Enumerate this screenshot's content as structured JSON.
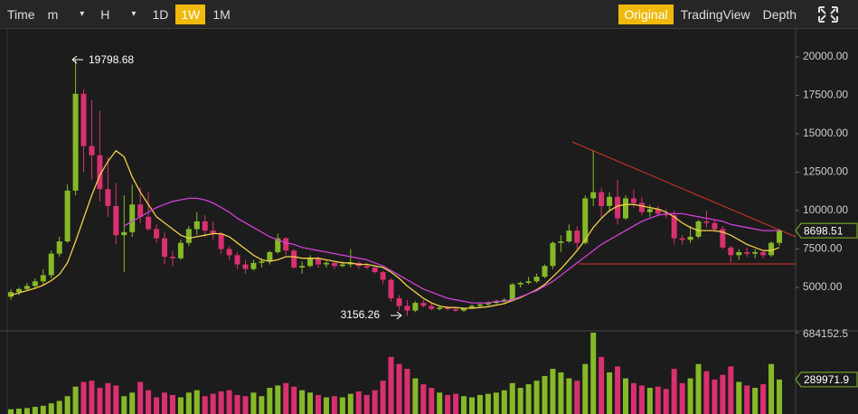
{
  "toolbar": {
    "left": [
      "Time",
      "m",
      "H",
      "1D",
      "1W",
      "1M"
    ],
    "active_interval": "1W",
    "dropdowns": [
      "m",
      "H"
    ],
    "right": [
      "Original",
      "TradingView",
      "Depth"
    ],
    "active_view": "Original"
  },
  "chart_data": [
    {
      "type": "candlestick",
      "up_color": "#86b928",
      "down_color": "#d9306f",
      "ylim": [
        2240,
        21760
      ],
      "yticks": [
        {
          "value": 20000,
          "label": "20000.00"
        },
        {
          "value": 17500,
          "label": "17500.00"
        },
        {
          "value": 15000,
          "label": "15000.00"
        },
        {
          "value": 12500,
          "label": "12500.00"
        },
        {
          "value": 10000,
          "label": "10000.00"
        },
        {
          "value": 7500,
          "label": "7500.00"
        },
        {
          "value": 5000,
          "label": "5000.00"
        }
      ],
      "ohlc": [
        [
          4400,
          4900,
          4200,
          4700
        ],
        [
          4700,
          5000,
          4500,
          4900
        ],
        [
          4900,
          5300,
          4800,
          5100
        ],
        [
          5100,
          5600,
          4900,
          5400
        ],
        [
          5400,
          6200,
          5200,
          5800
        ],
        [
          5800,
          7400,
          5600,
          7200
        ],
        [
          7200,
          8300,
          7000,
          8000
        ],
        [
          8000,
          11700,
          7900,
          11300
        ],
        [
          11300,
          19798.68,
          11000,
          17600
        ],
        [
          17600,
          17900,
          12500,
          14200
        ],
        [
          14200,
          17200,
          12000,
          13600
        ],
        [
          13600,
          16500,
          10600,
          11400
        ],
        [
          11400,
          13500,
          9600,
          10300
        ],
        [
          10300,
          11800,
          7800,
          8400
        ],
        [
          8400,
          11000,
          6000,
          8600
        ],
        [
          8600,
          11700,
          8300,
          10400
        ],
        [
          10400,
          11500,
          9200,
          9600
        ],
        [
          9600,
          11200,
          8700,
          8800
        ],
        [
          8800,
          9100,
          7900,
          8200
        ],
        [
          8200,
          8600,
          6500,
          7000
        ],
        [
          7000,
          7400,
          6400,
          6900
        ],
        [
          6900,
          8100,
          6800,
          7900
        ],
        [
          7900,
          9000,
          7700,
          8800
        ],
        [
          8800,
          9900,
          8400,
          9300
        ],
        [
          9300,
          9700,
          8300,
          8700
        ],
        [
          8700,
          9300,
          8100,
          8500
        ],
        [
          8500,
          8600,
          7200,
          7500
        ],
        [
          7500,
          7700,
          6800,
          7100
        ],
        [
          7100,
          7300,
          6200,
          6500
        ],
        [
          6500,
          6800,
          5900,
          6200
        ],
        [
          6200,
          6800,
          6100,
          6600
        ],
        [
          6600,
          6900,
          6300,
          6700
        ],
        [
          6700,
          7400,
          6500,
          7300
        ],
        [
          7300,
          8500,
          7200,
          8200
        ],
        [
          8200,
          8300,
          7100,
          7400
        ],
        [
          7400,
          7500,
          6200,
          6300
        ],
        [
          6300,
          6700,
          5900,
          6400
        ],
        [
          6400,
          7100,
          6300,
          6900
        ],
        [
          6900,
          7000,
          6300,
          6500
        ],
        [
          6500,
          6800,
          6300,
          6600
        ],
        [
          6600,
          6700,
          6200,
          6400
        ],
        [
          6400,
          6700,
          6300,
          6500
        ],
        [
          6500,
          7500,
          6300,
          6600
        ],
        [
          6600,
          6700,
          6200,
          6400
        ],
        [
          6400,
          6600,
          6200,
          6300
        ],
        [
          6300,
          6400,
          5900,
          6000
        ],
        [
          6000,
          6100,
          5200,
          5500
        ],
        [
          5500,
          5600,
          4100,
          4300
        ],
        [
          4300,
          4500,
          3500,
          3800
        ],
        [
          3800,
          4200,
          3156.26,
          3500
        ],
        [
          3500,
          4100,
          3400,
          4000
        ],
        [
          4000,
          4200,
          3700,
          3800
        ],
        [
          3800,
          4000,
          3500,
          3600
        ],
        [
          3600,
          3800,
          3500,
          3700
        ],
        [
          3700,
          3800,
          3500,
          3600
        ],
        [
          3600,
          3700,
          3400,
          3500
        ],
        [
          3500,
          3700,
          3400,
          3650
        ],
        [
          3650,
          3900,
          3600,
          3800
        ],
        [
          3800,
          4000,
          3700,
          3900
        ],
        [
          3900,
          4100,
          3800,
          4000
        ],
        [
          4000,
          4200,
          3900,
          4100
        ],
        [
          4100,
          4300,
          4000,
          4200
        ],
        [
          4200,
          5300,
          4100,
          5200
        ],
        [
          5200,
          5400,
          5000,
          5300
        ],
        [
          5300,
          5700,
          5200,
          5400
        ],
        [
          5400,
          5900,
          5300,
          5700
        ],
        [
          5700,
          6500,
          5600,
          6400
        ],
        [
          6400,
          8000,
          6200,
          7900
        ],
        [
          7900,
          8400,
          7300,
          8000
        ],
        [
          8000,
          9100,
          7900,
          8700
        ],
        [
          8700,
          9000,
          7500,
          7900
        ],
        [
          7900,
          11000,
          7800,
          10800
        ],
        [
          10800,
          13880,
          10300,
          11200
        ],
        [
          11200,
          11500,
          9600,
          10300
        ],
        [
          10300,
          11200,
          9900,
          10900
        ],
        [
          10900,
          12000,
          9100,
          9500
        ],
        [
          9500,
          11000,
          9400,
          10800
        ],
        [
          10800,
          11400,
          10200,
          10500
        ],
        [
          10500,
          10900,
          9700,
          9900
        ],
        [
          9900,
          10400,
          9600,
          10100
        ],
        [
          10100,
          10300,
          9700,
          9800
        ],
        [
          9800,
          10100,
          9500,
          9700
        ],
        [
          9700,
          10000,
          7800,
          8200
        ],
        [
          8200,
          8400,
          7800,
          8100
        ],
        [
          8100,
          9000,
          7900,
          8300
        ],
        [
          8300,
          9400,
          8200,
          9300
        ],
        [
          9300,
          10000,
          8900,
          9200
        ],
        [
          9200,
          9400,
          8600,
          8800
        ],
        [
          8800,
          9000,
          7500,
          7600
        ],
        [
          7600,
          7700,
          6600,
          7100
        ],
        [
          7100,
          7500,
          6800,
          7300
        ],
        [
          7300,
          7600,
          7000,
          7200
        ],
        [
          7200,
          7500,
          6900,
          7300
        ],
        [
          7300,
          7400,
          6900,
          7100
        ],
        [
          7100,
          8000,
          7000,
          7900
        ],
        [
          7900,
          8800,
          7700,
          8698.51
        ]
      ],
      "series": [
        {
          "color": "#f0d048",
          "values": [
            4500,
            4650,
            4800,
            4950,
            5150,
            5450,
            5850,
            6600,
            8000,
            9500,
            11000,
            12300,
            13200,
            13900,
            13500,
            12200,
            11200,
            10400,
            9600,
            9200,
            8800,
            8400,
            8200,
            8300,
            8400,
            8500,
            8500,
            8300,
            7900,
            7500,
            7100,
            6800,
            6700,
            6800,
            7000,
            7000,
            6900,
            6900,
            6900,
            6800,
            6700,
            6600,
            6600,
            6500,
            6500,
            6400,
            6300,
            6000,
            5600,
            5100,
            4700,
            4300,
            4000,
            3800,
            3700,
            3700,
            3650,
            3650,
            3700,
            3750,
            3850,
            3950,
            4150,
            4350,
            4600,
            4850,
            5200,
            5700,
            6200,
            6800,
            7400,
            8100,
            8900,
            9500,
            10000,
            10300,
            10400,
            10400,
            10300,
            10200,
            10100,
            9900,
            9600,
            9200,
            8900,
            8700,
            8700,
            8700,
            8600,
            8400,
            8100,
            7800,
            7600,
            7400,
            7400,
            7600
          ]
        },
        {
          "color": "#d23fd8",
          "values": [
            null,
            null,
            null,
            null,
            null,
            null,
            null,
            null,
            null,
            null,
            null,
            null,
            null,
            null,
            9000,
            9300,
            9600,
            9900,
            10200,
            10400,
            10600,
            10700,
            10800,
            10800,
            10700,
            10500,
            10200,
            9900,
            9500,
            9200,
            8900,
            8600,
            8300,
            8100,
            7900,
            7800,
            7600,
            7500,
            7400,
            7300,
            7200,
            7100,
            7000,
            6900,
            6800,
            6600,
            6400,
            6100,
            5800,
            5500,
            5200,
            4900,
            4700,
            4500,
            4300,
            4200,
            4100,
            4000,
            4000,
            4000,
            4100,
            4100,
            4200,
            4400,
            4600,
            4800,
            5100,
            5400,
            5800,
            6200,
            6600,
            7000,
            7400,
            7800,
            8100,
            8400,
            8700,
            9000,
            9300,
            9500,
            9700,
            9800,
            9800,
            9800,
            9700,
            9600,
            9500,
            9400,
            9300,
            9100,
            9000,
            8900,
            8800,
            8700,
            8700,
            8700
          ]
        }
      ]
    },
    {
      "type": "bar",
      "ylim": [
        0,
        684152.5
      ],
      "yticks": [
        684152.5
      ],
      "values": [
        40000,
        45000,
        50000,
        60000,
        70000,
        90000,
        110000,
        150000,
        230000,
        270000,
        280000,
        220000,
        260000,
        240000,
        150000,
        180000,
        270000,
        200000,
        140000,
        180000,
        160000,
        140000,
        180000,
        200000,
        150000,
        170000,
        190000,
        200000,
        160000,
        150000,
        180000,
        150000,
        220000,
        240000,
        260000,
        230000,
        200000,
        180000,
        160000,
        140000,
        150000,
        140000,
        170000,
        190000,
        160000,
        200000,
        280000,
        480000,
        420000,
        380000,
        300000,
        250000,
        220000,
        180000,
        160000,
        170000,
        150000,
        140000,
        160000,
        170000,
        180000,
        200000,
        260000,
        220000,
        250000,
        280000,
        320000,
        380000,
        350000,
        300000,
        280000,
        420000,
        684152.5,
        480000,
        350000,
        400000,
        300000,
        260000,
        240000,
        220000,
        230000,
        210000,
        380000,
        260000,
        300000,
        420000,
        360000,
        290000,
        330000,
        400000,
        270000,
        240000,
        220000,
        250000,
        420000,
        289971.9
      ]
    }
  ]
}
